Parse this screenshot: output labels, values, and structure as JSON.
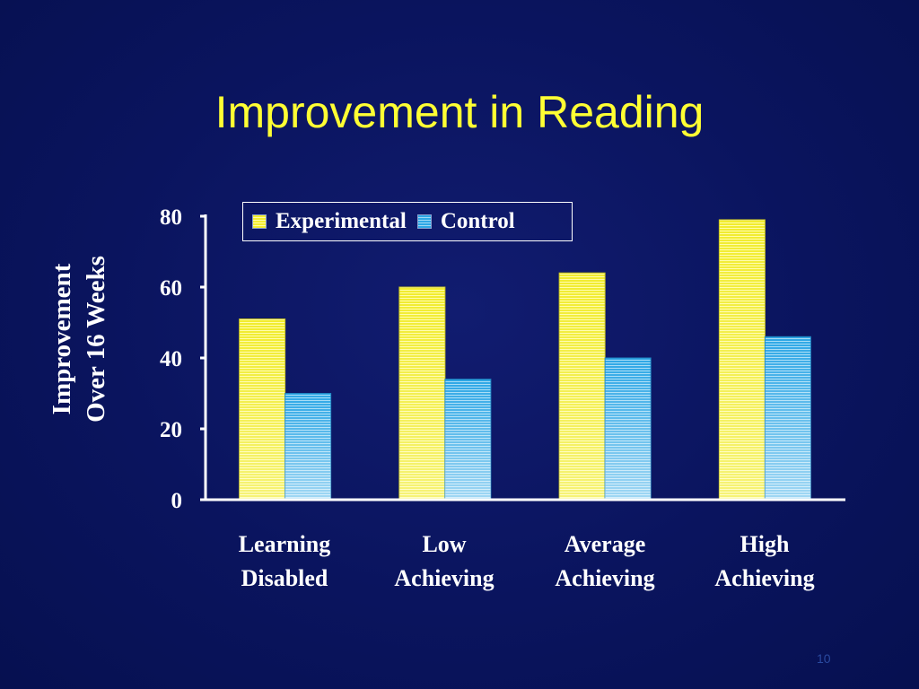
{
  "slide": {
    "title": "Improvement in Reading",
    "page_number": "10"
  },
  "chart_data": {
    "type": "bar",
    "title": "",
    "ylabel_lines": [
      "Improvement",
      "Over 16 Weeks"
    ],
    "xlabel": "",
    "categories": [
      "Learning Disabled",
      "Low Achieving",
      "Average Achieving",
      "High Achieving"
    ],
    "category_lines": [
      [
        "Learning",
        "Disabled"
      ],
      [
        "Low",
        "Achieving"
      ],
      [
        "Average",
        "Achieving"
      ],
      [
        "High",
        "Achieving"
      ]
    ],
    "series": [
      {
        "name": "Experimental",
        "values": [
          51,
          60,
          64,
          79
        ],
        "color": "#f3ee30"
      },
      {
        "name": "Control",
        "values": [
          30,
          34,
          40,
          46
        ],
        "color": "#2ea7e6"
      }
    ],
    "ylim": [
      0,
      80
    ],
    "yticks": [
      0,
      20,
      40,
      60,
      80
    ],
    "grid": false,
    "legend_position": "top-left"
  }
}
